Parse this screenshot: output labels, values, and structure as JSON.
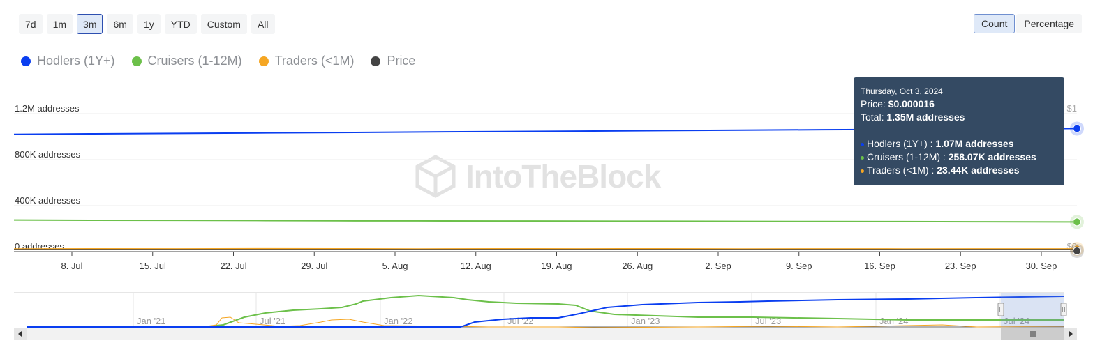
{
  "range_buttons": [
    {
      "label": "7d",
      "active": false
    },
    {
      "label": "1m",
      "active": false
    },
    {
      "label": "3m",
      "active": true
    },
    {
      "label": "6m",
      "active": false
    },
    {
      "label": "1y",
      "active": false
    },
    {
      "label": "YTD",
      "active": false
    },
    {
      "label": "Custom",
      "active": false
    },
    {
      "label": "All",
      "active": false
    }
  ],
  "mode_buttons": [
    {
      "label": "Count",
      "active": true
    },
    {
      "label": "Percentage",
      "active": false
    }
  ],
  "legend": [
    {
      "label": "Hodlers (1Y+)",
      "color": "#0a3ef0"
    },
    {
      "label": "Cruisers (1-12M)",
      "color": "#6cc04a"
    },
    {
      "label": "Traders (<1M)",
      "color": "#f5a623"
    },
    {
      "label": "Price",
      "color": "#444444"
    }
  ],
  "watermark": "IntoTheBlock",
  "tooltip": {
    "date": "Thursday, Oct 3, 2024",
    "price_label": "Price:",
    "price_value": "$0.000016",
    "total_label": "Total:",
    "total_value": "1.35M addresses",
    "rows": [
      {
        "label": "Hodlers (1Y+) :",
        "value": "1.07M addresses",
        "color": "#0a3ef0"
      },
      {
        "label": "Cruisers (1-12M) :",
        "value": "258.07K addresses",
        "color": "#6cc04a"
      },
      {
        "label": "Traders (<1M) :",
        "value": "23.44K addresses",
        "color": "#f5a623"
      }
    ]
  },
  "chart_data": {
    "type": "line",
    "x_ticks": [
      "8. Jul",
      "15. Jul",
      "22. Jul",
      "29. Jul",
      "5. Aug",
      "12. Aug",
      "19. Aug",
      "26. Aug",
      "2. Sep",
      "9. Sep",
      "16. Sep",
      "23. Sep",
      "30. Sep"
    ],
    "y_ticks": [
      "0 addresses",
      "400K addresses",
      "800K addresses",
      "1.2M addresses"
    ],
    "right_ticks": [
      "$0",
      "$1"
    ],
    "ylim": [
      0,
      1200000
    ],
    "x_dates": [
      "2024-07-03",
      "2024-07-10",
      "2024-07-17",
      "2024-07-24",
      "2024-07-31",
      "2024-08-07",
      "2024-08-14",
      "2024-08-21",
      "2024-08-28",
      "2024-09-04",
      "2024-09-11",
      "2024-09-18",
      "2024-09-25",
      "2024-10-03"
    ],
    "series": [
      {
        "name": "Hodlers (1Y+)",
        "color": "#0a3ef0",
        "values": [
          1020000,
          1024000,
          1028000,
          1032000,
          1036000,
          1040000,
          1044000,
          1048000,
          1052000,
          1056000,
          1060000,
          1063000,
          1067000,
          1070000
        ]
      },
      {
        "name": "Cruisers (1-12M)",
        "color": "#6cc04a",
        "values": [
          275000,
          273000,
          272000,
          270000,
          268000,
          267000,
          266000,
          265000,
          264000,
          263000,
          262000,
          261000,
          260000,
          258070
        ]
      },
      {
        "name": "Traders (<1M)",
        "color": "#f5a623",
        "values": [
          23000,
          24000,
          23500,
          25000,
          24000,
          23000,
          24500,
          23500,
          24000,
          23000,
          23800,
          23200,
          23600,
          23440
        ]
      },
      {
        "name": "Price",
        "color": "#444444",
        "values": [
          1.6e-05,
          1.6e-05,
          1.6e-05,
          1.6e-05,
          1.6e-05,
          1.6e-05,
          1.6e-05,
          1.6e-05,
          1.6e-05,
          1.6e-05,
          1.6e-05,
          1.6e-05,
          1.6e-05,
          1.6e-05
        ]
      }
    ],
    "navigator": {
      "x_ticks": [
        "Jan '21",
        "Jul '21",
        "Jan '22",
        "Jul '22",
        "Jan '23",
        "Jul '23",
        "Jan '24",
        "Jul '24"
      ]
    }
  }
}
